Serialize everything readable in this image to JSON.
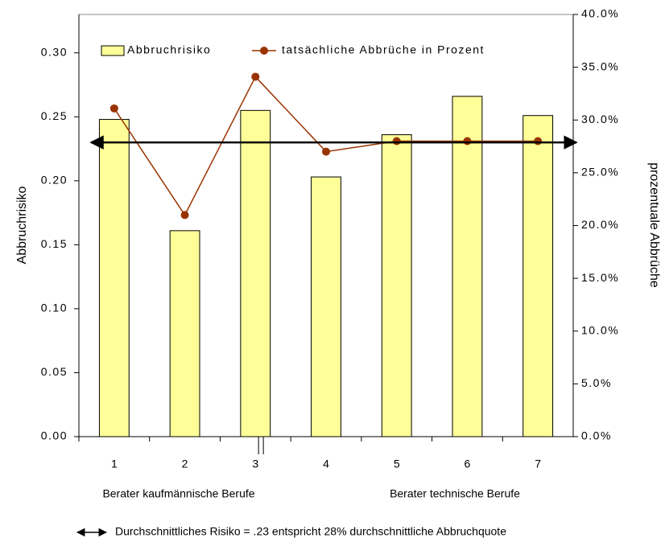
{
  "chart_data": {
    "type": "bar",
    "categories": [
      "1",
      "2",
      "3",
      "4",
      "5",
      "6",
      "7"
    ],
    "groups": [
      "Berater kaufmännische Berufe",
      "Berater technische Berufe"
    ],
    "series": [
      {
        "name": "Abbruchrisiko",
        "type": "bar",
        "color": "#ffff99",
        "values": [
          0.248,
          0.161,
          0.255,
          0.203,
          0.236,
          0.266,
          0.251
        ]
      },
      {
        "name": "tatsächliche Abbrüche in Prozent",
        "type": "line",
        "axis": "y2",
        "color": "#993300",
        "values": [
          31.1,
          21.0,
          34.1,
          27.0,
          28.0,
          28.0,
          28.0
        ]
      }
    ],
    "ylabel": "Abbruchrisiko",
    "y2label": "prozentuale Abbrüche",
    "ylim": [
      0,
      0.33
    ],
    "yticks": [
      {
        "value": 0,
        "label": "0.00"
      },
      {
        "value": 0.05,
        "label": "0.05"
      },
      {
        "value": 0.1,
        "label": "0.10"
      },
      {
        "value": 0.15,
        "label": "0.15"
      },
      {
        "value": 0.2,
        "label": "0.20"
      },
      {
        "value": 0.25,
        "label": "0.25"
      },
      {
        "value": 0.3,
        "label": "0.30"
      }
    ],
    "y2lim": [
      0,
      40
    ],
    "y2ticks": [
      {
        "value": 0,
        "label": "0.0%"
      },
      {
        "value": 5,
        "label": "5.0%"
      },
      {
        "value": 10,
        "label": "10.0%"
      },
      {
        "value": 15,
        "label": "15.0%"
      },
      {
        "value": 20,
        "label": "20.0%"
      },
      {
        "value": 25,
        "label": "25.0%"
      },
      {
        "value": 30,
        "label": "30.0%"
      },
      {
        "value": 35,
        "label": "35.0%"
      },
      {
        "value": 40,
        "label": "40.0%"
      }
    ],
    "average": 0.23,
    "annotation": "Durchschnittliches Risiko = .23 entspricht 28% durchschnittliche Abbruchquote",
    "legend": "top"
  }
}
